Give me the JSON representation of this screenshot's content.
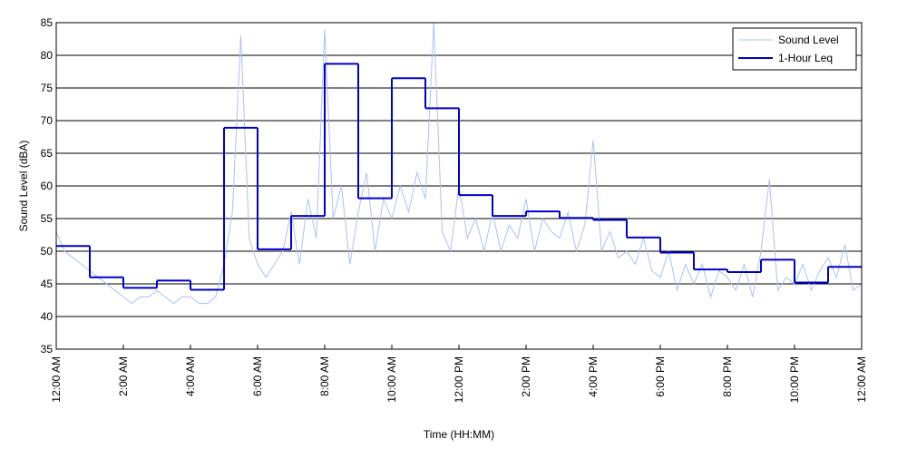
{
  "chart_data": {
    "type": "line",
    "xlabel": "Time (HH:MM)",
    "ylabel": "Sound Level (dBA)",
    "xlim": [
      0,
      24
    ],
    "ylim": [
      35,
      85
    ],
    "xticks": [
      {
        "value": 0,
        "label": "12:00 AM"
      },
      {
        "value": 2,
        "label": "2:00 AM"
      },
      {
        "value": 4,
        "label": "4:00 AM"
      },
      {
        "value": 6,
        "label": "6:00 AM"
      },
      {
        "value": 8,
        "label": "8:00 AM"
      },
      {
        "value": 10,
        "label": "10:00 AM"
      },
      {
        "value": 12,
        "label": "12:00 PM"
      },
      {
        "value": 14,
        "label": "2:00 PM"
      },
      {
        "value": 16,
        "label": "4:00 PM"
      },
      {
        "value": 18,
        "label": "6:00 PM"
      },
      {
        "value": 20,
        "label": "8:00 PM"
      },
      {
        "value": 22,
        "label": "10:00 PM"
      },
      {
        "value": 24,
        "label": "12:00 AM"
      }
    ],
    "yticks": [
      35,
      40,
      45,
      50,
      55,
      60,
      65,
      70,
      75,
      80,
      85
    ],
    "grid": true,
    "legend": "upper right",
    "series": [
      {
        "name": "Sound Level",
        "color": "#a9c3f2",
        "x": [
          0,
          0.25,
          0.5,
          0.75,
          1,
          1.25,
          1.5,
          1.75,
          2,
          2.25,
          2.5,
          2.75,
          3,
          3.25,
          3.5,
          3.75,
          4,
          4.25,
          4.5,
          4.75,
          5,
          5.25,
          5.5,
          5.75,
          6,
          6.25,
          6.5,
          6.75,
          7,
          7.25,
          7.5,
          7.75,
          8,
          8.25,
          8.5,
          8.75,
          9,
          9.25,
          9.5,
          9.75,
          10,
          10.25,
          10.5,
          10.75,
          11,
          11.25,
          11.5,
          11.75,
          12,
          12.25,
          12.5,
          12.75,
          13,
          13.25,
          13.5,
          13.75,
          14,
          14.25,
          14.5,
          14.75,
          15,
          15.25,
          15.5,
          15.75,
          16,
          16.25,
          16.5,
          16.75,
          17,
          17.25,
          17.5,
          17.75,
          18,
          18.25,
          18.5,
          18.75,
          19,
          19.25,
          19.5,
          19.75,
          20,
          20.25,
          20.5,
          20.75,
          21,
          21.25,
          21.5,
          21.75,
          22,
          22.25,
          22.5,
          22.75,
          23,
          23.25,
          23.5,
          23.75,
          24
        ],
        "values": [
          53,
          50,
          49,
          48,
          47,
          46,
          45,
          44,
          43,
          42,
          43,
          43,
          44,
          43,
          42,
          43,
          43,
          42,
          42,
          43,
          48,
          56,
          83,
          52,
          48,
          46,
          48,
          50,
          56,
          48,
          58,
          52,
          84,
          55,
          60,
          48,
          56,
          62,
          50,
          58,
          55,
          60,
          56,
          62,
          58,
          85,
          53,
          50,
          60,
          52,
          55,
          50,
          56,
          50,
          54,
          52,
          58,
          50,
          55,
          53,
          52,
          56,
          50,
          54,
          67,
          50,
          53,
          49,
          50,
          48,
          52,
          47,
          46,
          50,
          44,
          48,
          45,
          48,
          43,
          47,
          46,
          44,
          48,
          43,
          50,
          61,
          44,
          46,
          45,
          48,
          44,
          47,
          49,
          46,
          51,
          44,
          45
        ]
      },
      {
        "name": "1-Hour Leq",
        "color": "#0000cc",
        "step": true,
        "x": [
          0,
          1,
          2,
          3,
          4,
          5,
          6,
          7,
          8,
          9,
          10,
          11,
          12,
          13,
          14,
          15,
          16,
          17,
          18,
          19,
          20,
          21,
          22,
          23
        ],
        "values": [
          50.8,
          46.0,
          44.4,
          45.5,
          44.1,
          68.9,
          50.3,
          55.4,
          78.7,
          58.1,
          76.5,
          71.9,
          58.6,
          55.4,
          56.1,
          55.1,
          54.8,
          52.1,
          49.8,
          47.2,
          46.8,
          48.7,
          45.2,
          47.6
        ]
      }
    ]
  }
}
